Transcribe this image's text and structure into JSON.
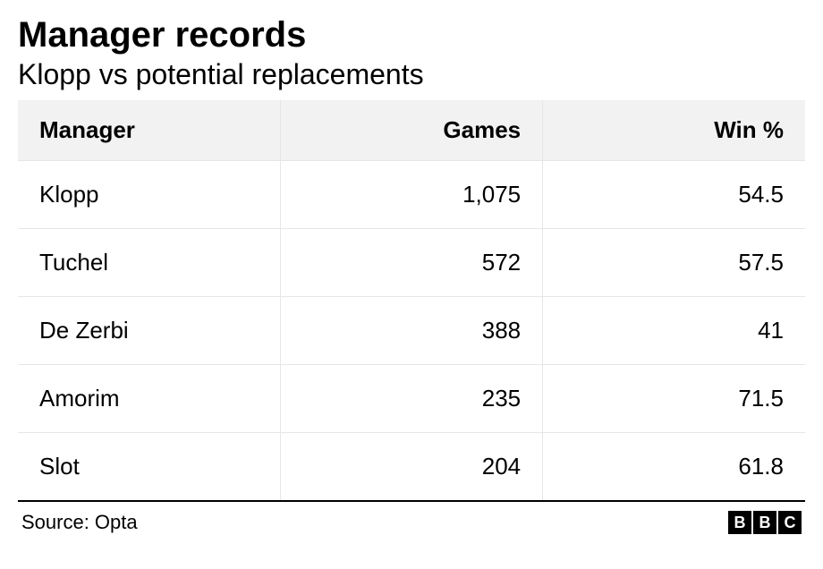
{
  "title": "Manager records",
  "subtitle": "Klopp vs potential replacements",
  "table": {
    "type": "table",
    "columns": [
      "Manager",
      "Games",
      "Win %"
    ],
    "column_alignments": [
      "left",
      "right",
      "right"
    ],
    "rows": [
      [
        "Klopp",
        "1,075",
        "54.5"
      ],
      [
        "Tuchel",
        "572",
        "57.5"
      ],
      [
        "De Zerbi",
        "388",
        "41"
      ],
      [
        "Amorim",
        "235",
        "71.5"
      ],
      [
        "Slot",
        "204",
        "61.8"
      ]
    ],
    "header_background": "#f2f2f2",
    "border_color": "#e6e6e6",
    "bottom_border_color": "#000000",
    "header_fontsize": 26,
    "header_fontweight": 700,
    "cell_fontsize": 26,
    "cell_fontweight": 400,
    "text_color": "#000000",
    "background_color": "#ffffff"
  },
  "source": "Source: Opta",
  "logo": {
    "letters": [
      "B",
      "B",
      "C"
    ],
    "box_background": "#000000",
    "box_text_color": "#ffffff"
  },
  "title_fontsize": 40,
  "title_fontweight": 700,
  "subtitle_fontsize": 32,
  "subtitle_fontweight": 400,
  "source_fontsize": 22
}
